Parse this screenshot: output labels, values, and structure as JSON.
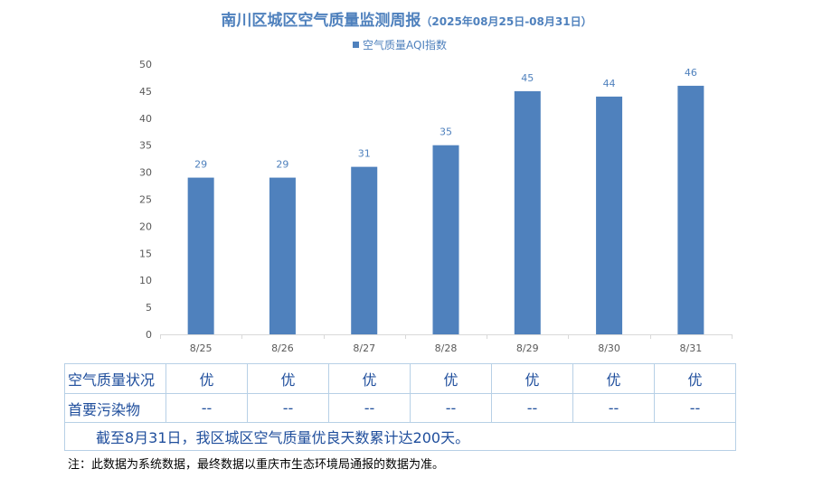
{
  "title": "南川区城区空气质量监测周报",
  "subtitle": "（2025年08月25日-08月31日）",
  "legend_label": "空气质量AQI指数",
  "colors": {
    "bar": "#4f81bd",
    "title": "#4f81bd",
    "label": "#4f81bd",
    "axis": "#595959",
    "table_text": "#1f4e9c",
    "table_border": "#b7d0e6"
  },
  "chart_data": {
    "type": "bar",
    "categories": [
      "8/25",
      "8/26",
      "8/27",
      "8/28",
      "8/29",
      "8/30",
      "8/31"
    ],
    "series": [
      {
        "name": "空气质量AQI指数",
        "values": [
          29,
          29,
          31,
          35,
          45,
          44,
          46
        ]
      }
    ],
    "ylim": [
      0,
      50
    ],
    "yticks": [
      0,
      5,
      10,
      15,
      20,
      25,
      30,
      35,
      40,
      45,
      50
    ],
    "grid": false,
    "legend_position": "top"
  },
  "table": {
    "row1_label": "空气质量状况",
    "row1_values": [
      "优",
      "优",
      "优",
      "优",
      "优",
      "优",
      "优"
    ],
    "row2_label": "首要污染物",
    "row2_values": [
      "--",
      "--",
      "--",
      "--",
      "--",
      "--",
      "--"
    ],
    "summary": "截至8月31日，我区城区空气质量优良天数累计达200天。"
  },
  "footnote": "注：此数据为系统数据，最终数据以重庆市生态环境局通报的数据为准。"
}
